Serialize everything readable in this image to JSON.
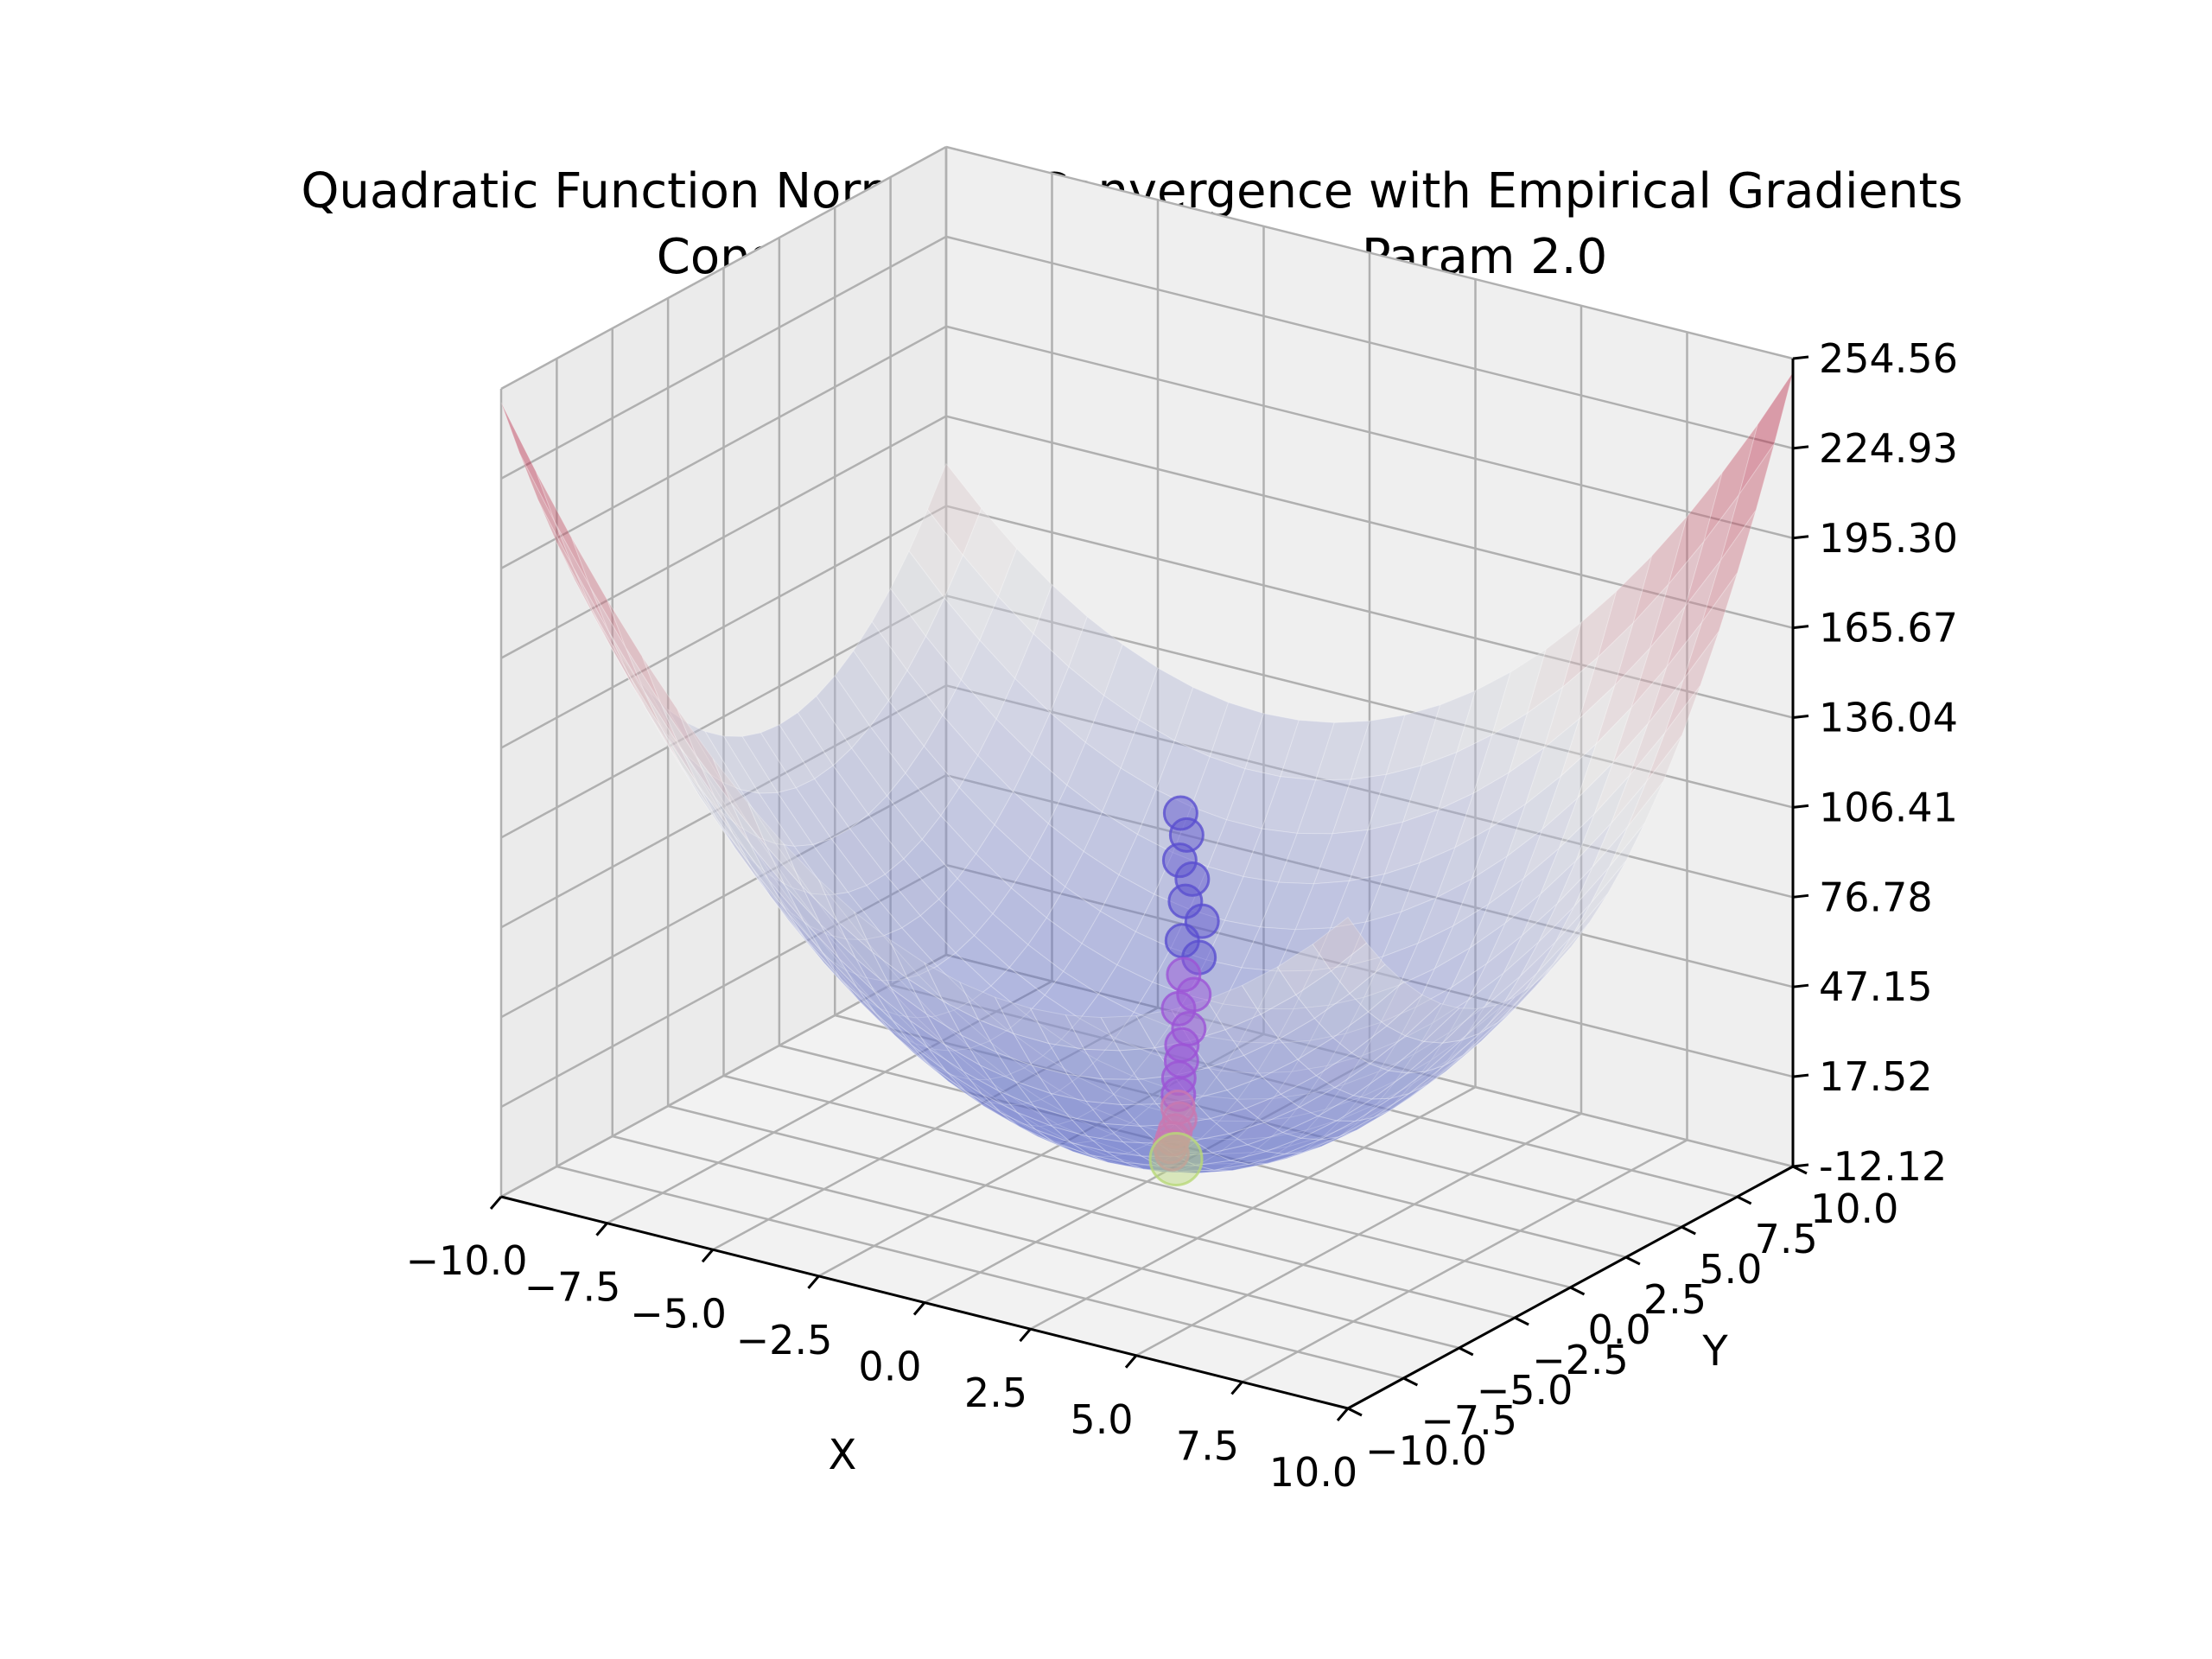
{
  "figure": {
    "title_line1": "Quadratic Function Normalize Convergence with Empirical Gradients",
    "title_line2": "Constant Optimal Step Sizes Param 2.0"
  },
  "chart_data": {
    "type": "surface",
    "surface_function": "f(x, y) = x^2 + y^2 + 0.5*x*y (approx.)",
    "xlabel": "X",
    "ylabel": "Y",
    "zlabel": "",
    "xlim": [
      -10.0,
      10.0
    ],
    "ylim": [
      -10.0,
      10.0
    ],
    "zlim": [
      -12.12,
      254.56
    ],
    "x_ticks": [
      "−10.0",
      "−7.5",
      "−5.0",
      "−2.5",
      "0.0",
      "2.5",
      "5.0",
      "7.5",
      "10.0"
    ],
    "y_ticks": [
      "−10.0",
      "−7.5",
      "−5.0",
      "−2.5",
      "0.0",
      "2.5",
      "5.0",
      "7.5",
      "10.0"
    ],
    "z_ticks": [
      "-12.12",
      "17.52",
      "47.15",
      "76.78",
      "106.41",
      "136.04",
      "165.67",
      "195.30",
      "224.93",
      "254.56"
    ],
    "z_tick_values": [
      -12.12,
      17.52,
      47.15,
      76.78,
      106.41,
      136.04,
      165.67,
      195.3,
      224.93,
      254.56
    ],
    "colormap": {
      "low": "#3b4cc0",
      "mid": "#dddddd",
      "high": "#b40426"
    },
    "grid": true,
    "trajectory": {
      "marker": "circle",
      "colors": {
        "start": "#5a4fcf",
        "mid": "#9c54d6",
        "late": "#c978b0",
        "end": "#b8d878"
      },
      "points": [
        {
          "x": -3.2,
          "y": 7.6,
          "z": 68
        },
        {
          "x": -2.9,
          "y": 7.3,
          "z": 63
        },
        {
          "x": -2.8,
          "y": 6.8,
          "z": 57
        },
        {
          "x": -2.4,
          "y": 6.6,
          "z": 53
        },
        {
          "x": -2.3,
          "y": 6.1,
          "z": 48
        },
        {
          "x": -1.8,
          "y": 5.9,
          "z": 44
        },
        {
          "x": -1.9,
          "y": 5.2,
          "z": 40
        },
        {
          "x": -1.4,
          "y": 5.0,
          "z": 37
        },
        {
          "x": -1.5,
          "y": 4.5,
          "z": 33
        },
        {
          "x": -1.1,
          "y": 4.2,
          "z": 29
        },
        {
          "x": -1.2,
          "y": 3.7,
          "z": 26
        },
        {
          "x": -0.8,
          "y": 3.4,
          "z": 22
        },
        {
          "x": -0.7,
          "y": 2.9,
          "z": 19
        },
        {
          "x": -0.5,
          "y": 2.5,
          "z": 16
        },
        {
          "x": -0.3,
          "y": 2.0,
          "z": 13
        },
        {
          "x": -0.1,
          "y": 1.6,
          "z": 10
        },
        {
          "x": 0.1,
          "y": 1.2,
          "z": 8
        },
        {
          "x": 0.3,
          "y": 0.9,
          "z": 6
        },
        {
          "x": 0.4,
          "y": 0.5,
          "z": 4
        },
        {
          "x": 0.5,
          "y": 0.2,
          "z": 3
        },
        {
          "x": 0.6,
          "y": -0.1,
          "z": 2
        },
        {
          "x": 0.8,
          "y": -0.4,
          "z": 1.5
        },
        {
          "x": 1.0,
          "y": -0.6,
          "z": 1.2
        }
      ]
    }
  }
}
